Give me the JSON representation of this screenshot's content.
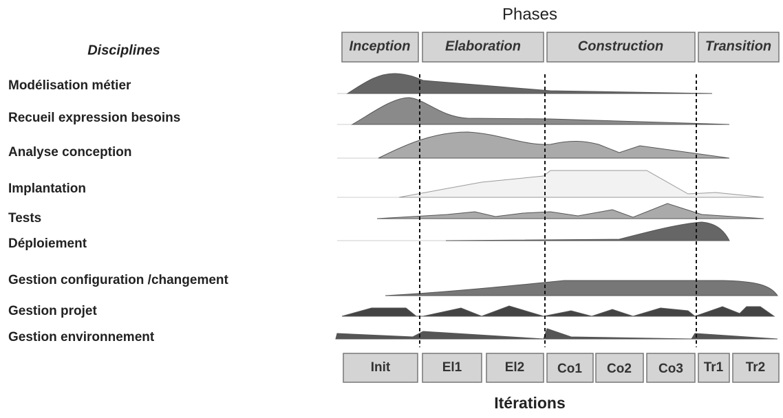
{
  "phases_title": "Phases",
  "phases": [
    "Inception",
    "Elaboration",
    "Construction",
    "Transition"
  ],
  "disciplines_title": "Disciplines",
  "disciplines": [
    "Modélisation métier",
    "Recueil  expression besoins",
    "Analyse conception",
    "Implantation",
    "Tests",
    "Déploiement",
    "Gestion configuration /changement",
    "Gestion projet",
    "Gestion environnement"
  ],
  "iterations": [
    "Init",
    "El1",
    "El2",
    "Co1",
    "Co2",
    "Co3",
    "Tr1",
    "Tr2"
  ],
  "iterations_title": "Itérations"
}
